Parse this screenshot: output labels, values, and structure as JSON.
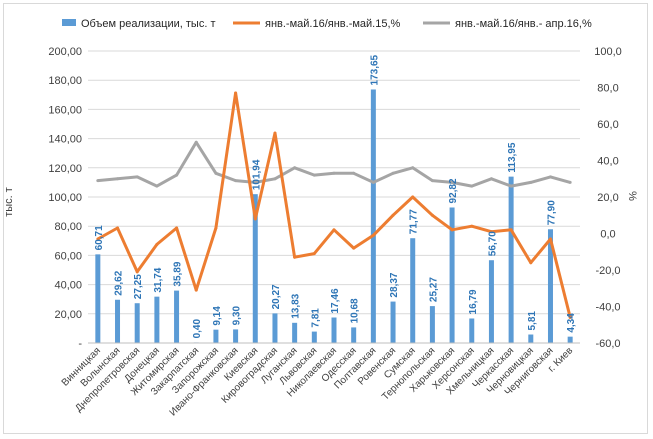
{
  "chart_data": {
    "type": "bar+line",
    "title": "",
    "ylabel_left": "тыс. т",
    "ylabel_right": "%",
    "ylim_left": [
      0,
      200
    ],
    "ylim_right": [
      -60,
      100
    ],
    "left_ticks": [
      "-",
      "20,00",
      "40,00",
      "60,00",
      "80,00",
      "100,00",
      "120,00",
      "140,00",
      "160,00",
      "180,00",
      "200,00"
    ],
    "right_ticks": [
      "-60,0",
      "-40,0",
      "-20,0",
      "0,0",
      "20,0",
      "40,0",
      "60,0",
      "80,0",
      "100,0"
    ],
    "grid": true,
    "legend_position": "top",
    "categories": [
      "Винницкая",
      "Волынская",
      "Днепропетровская",
      "Донецкая",
      "Житомирская",
      "Закарпатская",
      "Запорожская",
      "Ивано-Франковская",
      "Киевская",
      "Кировоградская",
      "Луганская",
      "Львовская",
      "Николаевская",
      "Одесская",
      "Полтавская",
      "Ровенская",
      "Сумская",
      "Тернопольская",
      "Харьковская",
      "Херсонская",
      "Хмельницкая",
      "Черкасская",
      "Черновицкая",
      "Черниговская",
      "г. Киев"
    ],
    "series": [
      {
        "name": "Объем реализации, тыс. т",
        "kind": "bar",
        "axis": "left",
        "color": "#5b9bd5",
        "values": [
          60.71,
          29.62,
          27.25,
          31.74,
          35.89,
          0.4,
          9.14,
          9.3,
          101.94,
          20.27,
          13.83,
          7.81,
          17.46,
          10.68,
          173.65,
          28.37,
          71.77,
          25.27,
          92.82,
          16.79,
          56.7,
          113.95,
          5.81,
          77.9,
          4.34
        ],
        "labels": [
          "60,71",
          "29,62",
          "27,25",
          "31,74",
          "35,89",
          "0,40",
          "9,14",
          "9,30",
          "101,94",
          "20,27",
          "13,83",
          "7,81",
          "17,46",
          "10,68",
          "173,65",
          "28,37",
          "71,77",
          "25,27",
          "92,82",
          "16,79",
          "56,70",
          "113,95",
          "5,81",
          "77,90",
          "4,34"
        ]
      },
      {
        "name": "янв.-май.16/янв.-май.15,%",
        "kind": "line",
        "axis": "right",
        "color": "#ed7d31",
        "values": [
          -3,
          3,
          -21,
          -6,
          3,
          -31,
          3,
          77,
          8,
          55,
          -13,
          -11,
          2,
          -8,
          -1,
          10,
          20,
          10,
          2,
          4,
          1,
          2,
          -16,
          -3,
          -46
        ]
      },
      {
        "name": "янв.-май.16/янв.- апр.16,%",
        "kind": "line",
        "axis": "right",
        "color": "#a5a5a5",
        "values": [
          29,
          30,
          31,
          26,
          32,
          50,
          33,
          29,
          28,
          30,
          36,
          32,
          33,
          33,
          28,
          33,
          36,
          29,
          28,
          26,
          30,
          26,
          28,
          31,
          28
        ]
      }
    ]
  }
}
